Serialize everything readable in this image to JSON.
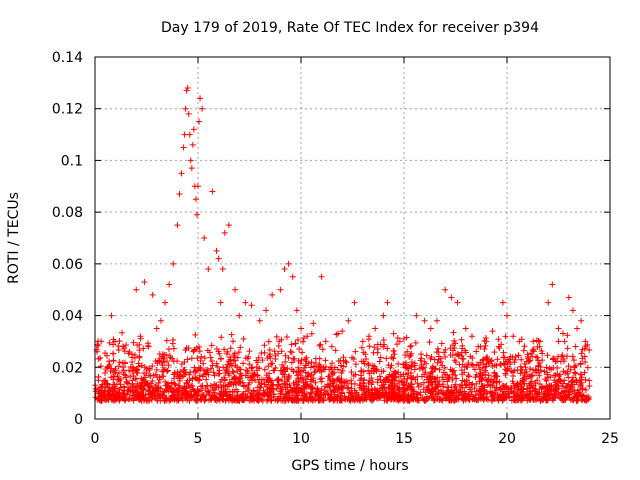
{
  "chart_data": {
    "type": "scatter",
    "title": "Day 179 of 2019, Rate Of TEC Index for receiver p394",
    "xlabel": "GPS time / hours",
    "ylabel": "ROTI / TECUs",
    "xlim": [
      0,
      25
    ],
    "ylim": [
      0,
      0.14
    ],
    "x_ticks": [
      0,
      5,
      10,
      15,
      20,
      25
    ],
    "x_tick_labels": [
      "0",
      "5",
      "10",
      "15",
      "20",
      "25"
    ],
    "y_ticks": [
      0,
      0.02,
      0.04,
      0.06,
      0.08,
      0.1,
      0.12,
      0.14
    ],
    "y_tick_labels": [
      "0",
      "0.02",
      "0.04",
      "0.06",
      "0.08",
      "0.1",
      "0.12",
      "0.14"
    ],
    "grid": true,
    "marker": "+",
    "marker_color": "#ff0000",
    "series": [
      {
        "name": "ROTI",
        "x": [
          0.1,
          0.3,
          0.5,
          0.6,
          0.8,
          1.0,
          1.2,
          1.5,
          1.8,
          2.0,
          2.2,
          2.4,
          2.6,
          2.8,
          3.0,
          3.2,
          3.4,
          3.6,
          3.8,
          4.0,
          4.1,
          4.2,
          4.3,
          4.35,
          4.4,
          4.45,
          4.5,
          4.55,
          4.6,
          4.65,
          4.7,
          4.75,
          4.8,
          4.85,
          4.9,
          4.95,
          5.0,
          5.05,
          5.1,
          5.2,
          5.3,
          5.5,
          5.7,
          5.9,
          6.0,
          6.1,
          6.2,
          6.3,
          6.5,
          6.8,
          7.0,
          7.3,
          7.6,
          8.0,
          8.3,
          8.6,
          9.0,
          9.2,
          9.4,
          9.6,
          9.8,
          10.0,
          10.3,
          10.6,
          11.0,
          11.2,
          11.5,
          11.8,
          12.0,
          12.3,
          12.6,
          13.0,
          13.3,
          13.6,
          14.0,
          14.2,
          14.5,
          14.8,
          15.0,
          15.3,
          15.6,
          16.0,
          16.3,
          16.6,
          17.0,
          17.3,
          17.6,
          18.0,
          18.3,
          18.6,
          19.0,
          19.3,
          19.6,
          19.8,
          20.0,
          20.3,
          20.6,
          21.0,
          21.3,
          21.6,
          22.0,
          22.2,
          22.5,
          22.8,
          23.0,
          23.2,
          23.4,
          23.6,
          23.8
        ],
        "y": [
          0.026,
          0.03,
          0.015,
          0.02,
          0.04,
          0.018,
          0.022,
          0.016,
          0.025,
          0.05,
          0.032,
          0.053,
          0.028,
          0.048,
          0.035,
          0.038,
          0.045,
          0.052,
          0.06,
          0.075,
          0.087,
          0.095,
          0.105,
          0.11,
          0.12,
          0.127,
          0.128,
          0.118,
          0.11,
          0.1,
          0.097,
          0.106,
          0.112,
          0.09,
          0.085,
          0.079,
          0.09,
          0.115,
          0.124,
          0.12,
          0.07,
          0.058,
          0.088,
          0.065,
          0.062,
          0.045,
          0.058,
          0.072,
          0.075,
          0.05,
          0.04,
          0.045,
          0.044,
          0.038,
          0.042,
          0.048,
          0.05,
          0.058,
          0.06,
          0.055,
          0.042,
          0.035,
          0.032,
          0.037,
          0.055,
          0.03,
          0.028,
          0.033,
          0.034,
          0.038,
          0.045,
          0.03,
          0.032,
          0.035,
          0.04,
          0.045,
          0.033,
          0.03,
          0.031,
          0.028,
          0.04,
          0.038,
          0.035,
          0.038,
          0.05,
          0.047,
          0.045,
          0.035,
          0.032,
          0.028,
          0.03,
          0.034,
          0.028,
          0.045,
          0.04,
          0.032,
          0.03,
          0.025,
          0.027,
          0.03,
          0.045,
          0.052,
          0.035,
          0.03,
          0.047,
          0.042,
          0.035,
          0.038,
          0.03
        ]
      }
    ],
    "noise_band": {
      "description": "dense base cloud",
      "x_range": [
        0,
        24
      ],
      "y_range": [
        0.003,
        0.03
      ]
    }
  }
}
